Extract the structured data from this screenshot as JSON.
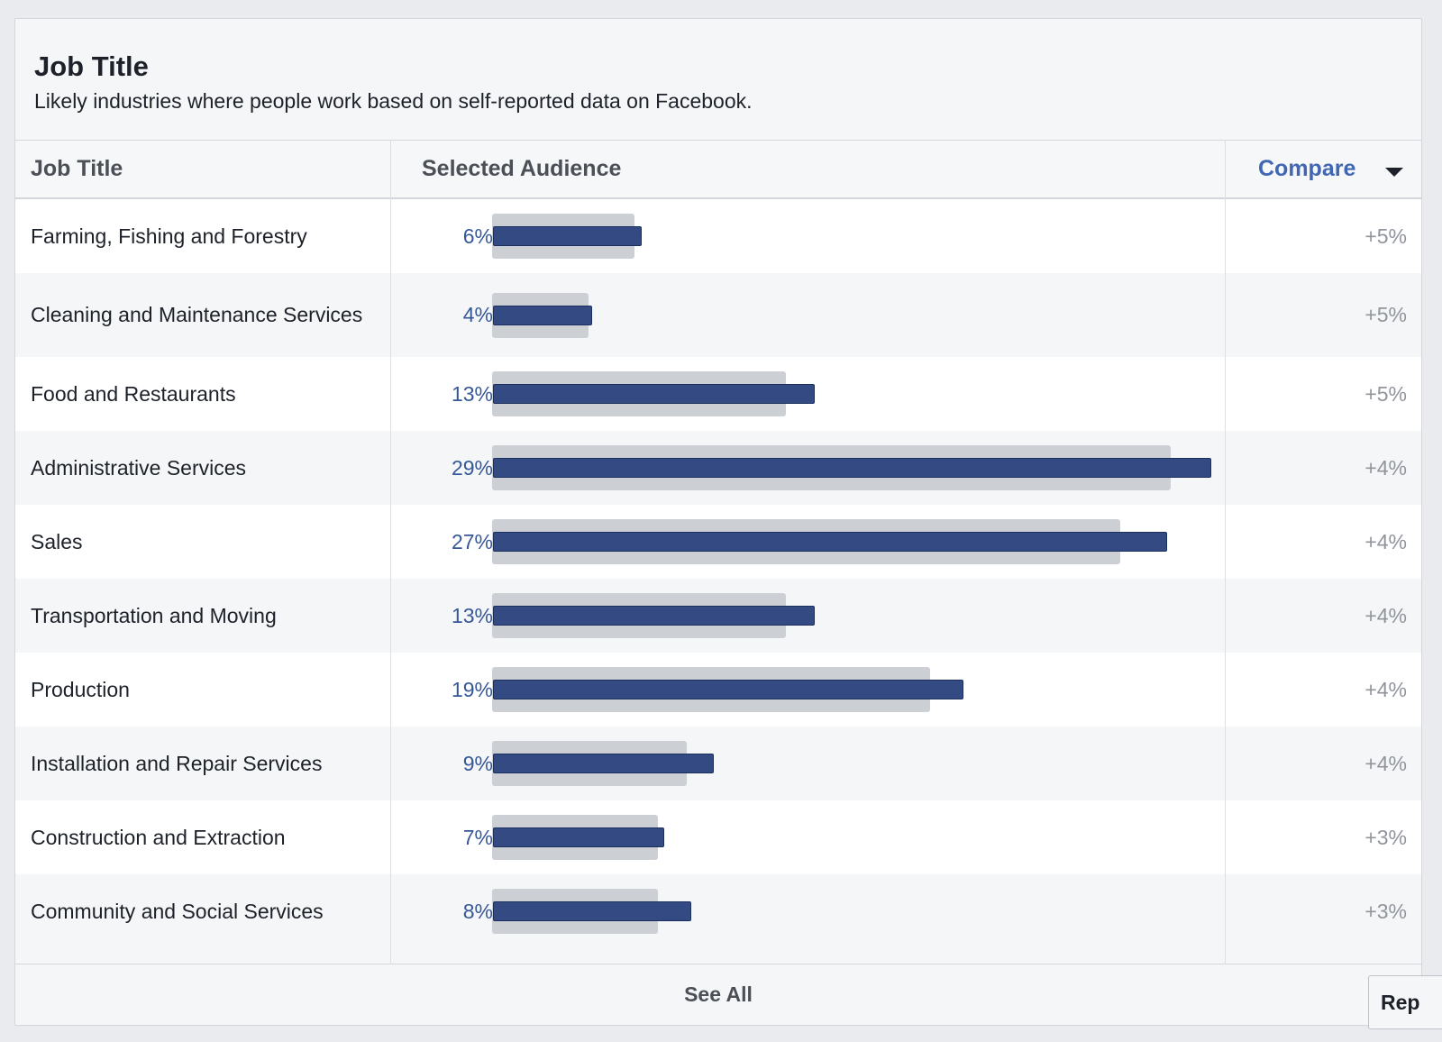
{
  "card": {
    "title": "Job Title",
    "subtitle": "Likely industries where people work based on self-reported data on Facebook."
  },
  "table": {
    "headers": {
      "job_title": "Job Title",
      "selected_audience": "Selected Audience",
      "compare": "Compare"
    },
    "rows": [
      {
        "label": "Farming, Fishing and Forestry",
        "pct": "6%",
        "selected": 6,
        "comparison": 5.9,
        "compare": "+5%"
      },
      {
        "label": "Cleaning and Maintenance Services",
        "pct": "4%",
        "selected": 4,
        "comparison": 4,
        "compare": "+5%"
      },
      {
        "label": "Food and Restaurants",
        "pct": "13%",
        "selected": 13,
        "comparison": 12.2,
        "compare": "+5%"
      },
      {
        "label": "Administrative Services",
        "pct": "29%",
        "selected": 29,
        "comparison": 28.2,
        "compare": "+4%"
      },
      {
        "label": "Sales",
        "pct": "27%",
        "selected": 27.2,
        "comparison": 26.1,
        "compare": "+4%"
      },
      {
        "label": "Transportation and Moving",
        "pct": "13%",
        "selected": 13,
        "comparison": 12.2,
        "compare": "+4%"
      },
      {
        "label": "Production",
        "pct": "19%",
        "selected": 19,
        "comparison": 18.2,
        "compare": "+4%"
      },
      {
        "label": "Installation and Repair Services",
        "pct": "9%",
        "selected": 8.9,
        "comparison": 8.1,
        "compare": "+4%"
      },
      {
        "label": "Construction and Extraction",
        "pct": "7%",
        "selected": 6.9,
        "comparison": 6.9,
        "compare": "+3%"
      },
      {
        "label": "Community and Social Services",
        "pct": "8%",
        "selected": 8,
        "comparison": 6.9,
        "compare": "+3%"
      }
    ],
    "scale_max": 29
  },
  "footer": {
    "see_all_label": "See All"
  },
  "corner_button": {
    "label": "Rep"
  },
  "colors": {
    "selected_bar": "#344a82",
    "comparison_bar": "#ccd0d5",
    "link": "#4267b2",
    "percent_text": "#365899"
  },
  "icons": {
    "compare_dropdown": "caret-down-icon"
  }
}
